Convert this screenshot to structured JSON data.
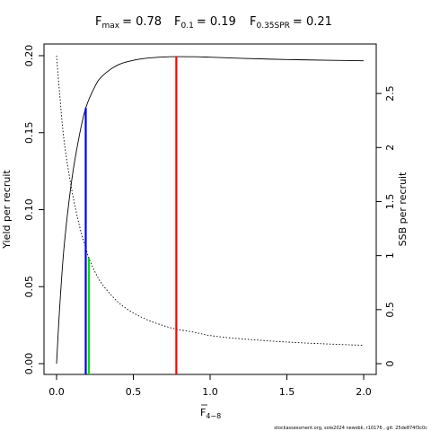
{
  "chart_data": {
    "type": "line",
    "title": {
      "fmax": {
        "base": "F",
        "sub": "max",
        "value": "= 0.78"
      },
      "f01": {
        "base": "F",
        "sub": "0.1",
        "value": "= 0.19"
      },
      "fspr": {
        "base": "F",
        "sub": "0.35SPR",
        "value": "= 0.21"
      }
    },
    "xlabel": {
      "base": "F",
      "sub": "4−8"
    },
    "ylabel_left": "Yield per recruit",
    "ylabel_right": "SSB per recruit",
    "xlim": [
      0,
      2
    ],
    "ylim_left": [
      0,
      0.2
    ],
    "ylim_right": [
      0,
      2.85
    ],
    "x_ticks": [
      0,
      0.5,
      1,
      1.5,
      2
    ],
    "x_tick_labels": [
      "0.0",
      "0.5",
      "1.0",
      "1.5",
      "2.0"
    ],
    "y_left_ticks": [
      0,
      0.05,
      0.1,
      0.15,
      0.2
    ],
    "y_left_tick_labels": [
      "0.00",
      "0.05",
      "0.10",
      "0.15",
      "0.20"
    ],
    "y_right_ticks": [
      0,
      0.5,
      1,
      1.5,
      2,
      2.5
    ],
    "y_right_tick_labels": [
      "0",
      "0.5",
      "1",
      "1.5",
      "2",
      "2.5"
    ],
    "series": [
      {
        "style": "solid",
        "axis": "left",
        "x": [
          0,
          0.02,
          0.05,
          0.1,
          0.15,
          0.19,
          0.25,
          0.3,
          0.4,
          0.5,
          0.6,
          0.7,
          0.78,
          0.9,
          1.0,
          1.2,
          1.5,
          1.8,
          2.0
        ],
        "y": [
          0,
          0.036,
          0.077,
          0.12,
          0.149,
          0.166,
          0.18,
          0.187,
          0.194,
          0.197,
          0.1985,
          0.1992,
          0.1994,
          0.1993,
          0.199,
          0.1983,
          0.1975,
          0.197,
          0.1967
        ]
      },
      {
        "style": "dotted",
        "axis": "right",
        "x": [
          0,
          0.02,
          0.05,
          0.1,
          0.15,
          0.19,
          0.21,
          0.25,
          0.3,
          0.4,
          0.5,
          0.6,
          0.7,
          0.78,
          0.9,
          1.0,
          1.2,
          1.5,
          1.8,
          2.0
        ],
        "y": [
          2.85,
          2.5,
          2.05,
          1.6,
          1.27,
          1.07,
          0.98,
          0.85,
          0.73,
          0.57,
          0.47,
          0.4,
          0.35,
          0.32,
          0.29,
          0.26,
          0.23,
          0.2,
          0.18,
          0.17
        ]
      }
    ],
    "reference_lines": [
      {
        "name": "Fmax",
        "x": 0.78,
        "y": 0.1994,
        "axis": "left",
        "color": "#ff0000"
      },
      {
        "name": "F0.1",
        "x": 0.19,
        "y": 0.166,
        "axis": "left",
        "color": "#0000ff"
      },
      {
        "name": "F0.35SPR",
        "x": 0.21,
        "y": 0.98,
        "axis": "right",
        "color": "#00dd00"
      }
    ]
  },
  "footer": "stockassessment.org,  sole2024  newsbk,  r10176 ,  git: 25de874f3c0c"
}
